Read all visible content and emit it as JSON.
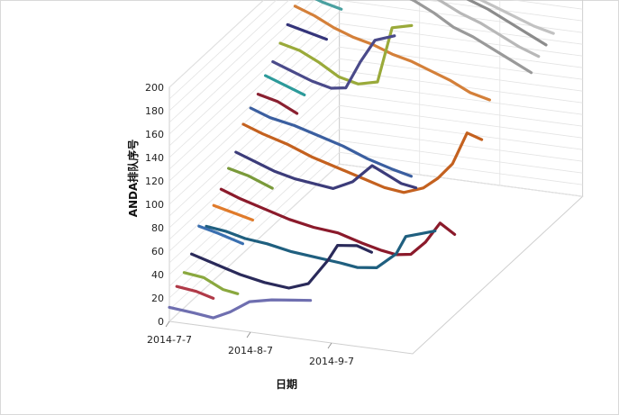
{
  "chart_data": {
    "type": "line",
    "title": "",
    "xlabel": "日期",
    "ylabel": "ANDA排队序号",
    "ylim": [
      0,
      200
    ],
    "yticks": [
      0,
      20,
      40,
      60,
      80,
      100,
      120,
      140,
      160,
      180,
      200
    ],
    "xticks": [
      "2014-7-7",
      "2014-8-7",
      "2014-9-7"
    ],
    "xlim_days": [
      0,
      100
    ],
    "grid": true,
    "legend": "none",
    "series": [
      {
        "color": "#6f6fb0",
        "depth": 0,
        "points": [
          [
            0,
            12
          ],
          [
            10,
            10
          ],
          [
            18,
            8
          ],
          [
            25,
            15
          ],
          [
            33,
            26
          ],
          [
            42,
            30
          ],
          [
            50,
            32
          ],
          [
            58,
            34
          ]
        ]
      },
      {
        "color": "#b03a48",
        "depth": 1,
        "points": [
          [
            0,
            24
          ],
          [
            8,
            22
          ],
          [
            15,
            18
          ]
        ]
      },
      {
        "color": "#8aa83e",
        "depth": 2,
        "points": [
          [
            0,
            30
          ],
          [
            8,
            28
          ],
          [
            16,
            20
          ],
          [
            22,
            18
          ]
        ]
      },
      {
        "color": "#2a2a5a",
        "depth": 3,
        "points": [
          [
            0,
            40
          ],
          [
            10,
            34
          ],
          [
            20,
            28
          ],
          [
            30,
            24
          ],
          [
            40,
            22
          ],
          [
            48,
            28
          ],
          [
            56,
            50
          ],
          [
            60,
            64
          ],
          [
            68,
            66
          ],
          [
            74,
            62
          ]
        ]
      },
      {
        "color": "#3a6fb0",
        "depth": 4,
        "points": [
          [
            0,
            58
          ],
          [
            8,
            54
          ],
          [
            18,
            48
          ]
        ]
      },
      {
        "color": "#1f5f7f",
        "depth": 5,
        "points": [
          [
            0,
            52
          ],
          [
            8,
            50
          ],
          [
            16,
            46
          ],
          [
            25,
            44
          ],
          [
            35,
            40
          ],
          [
            45,
            38
          ],
          [
            55,
            36
          ],
          [
            62,
            34
          ],
          [
            70,
            36
          ],
          [
            78,
            50
          ],
          [
            82,
            66
          ],
          [
            88,
            70
          ],
          [
            94,
            74
          ]
        ]
      },
      {
        "color": "#e07b2b",
        "depth": 6,
        "points": [
          [
            0,
            64
          ],
          [
            8,
            60
          ],
          [
            16,
            56
          ]
        ]
      },
      {
        "color": "#8b1a2b",
        "depth": 7,
        "points": [
          [
            0,
            72
          ],
          [
            8,
            66
          ],
          [
            18,
            60
          ],
          [
            28,
            54
          ],
          [
            38,
            50
          ],
          [
            48,
            48
          ],
          [
            58,
            42
          ],
          [
            66,
            38
          ],
          [
            72,
            36
          ],
          [
            78,
            38
          ],
          [
            84,
            50
          ],
          [
            90,
            68
          ],
          [
            96,
            60
          ]
        ]
      },
      {
        "color": "#7a9a3a",
        "depth": 8,
        "points": [
          [
            0,
            84
          ],
          [
            8,
            80
          ],
          [
            18,
            72
          ]
        ]
      },
      {
        "color": "#3c3c7a",
        "depth": 9,
        "points": [
          [
            0,
            92
          ],
          [
            8,
            86
          ],
          [
            16,
            80
          ],
          [
            24,
            76
          ],
          [
            32,
            74
          ],
          [
            40,
            72
          ],
          [
            48,
            80
          ],
          [
            56,
            96
          ],
          [
            62,
            90
          ],
          [
            68,
            84
          ],
          [
            74,
            82
          ]
        ]
      },
      {
        "color": "#c4611f",
        "depth": 10,
        "points": [
          [
            0,
            110
          ],
          [
            8,
            104
          ],
          [
            18,
            98
          ],
          [
            28,
            90
          ],
          [
            38,
            84
          ],
          [
            48,
            78
          ],
          [
            58,
            72
          ],
          [
            66,
            70
          ],
          [
            74,
            76
          ],
          [
            80,
            86
          ],
          [
            86,
            100
          ],
          [
            92,
            128
          ],
          [
            98,
            124
          ]
        ]
      },
      {
        "color": "#3b5fa0",
        "depth": 11,
        "points": [
          [
            0,
            118
          ],
          [
            8,
            112
          ],
          [
            18,
            108
          ],
          [
            28,
            102
          ],
          [
            38,
            96
          ],
          [
            48,
            88
          ],
          [
            58,
            82
          ],
          [
            66,
            78
          ]
        ]
      },
      {
        "color": "#8a2030",
        "depth": 12,
        "points": [
          [
            0,
            124
          ],
          [
            8,
            120
          ],
          [
            16,
            112
          ]
        ]
      },
      {
        "color": "#2c9a9a",
        "depth": 13,
        "points": [
          [
            0,
            134
          ],
          [
            8,
            128
          ],
          [
            16,
            122
          ]
        ]
      },
      {
        "color": "#4a4a8a",
        "depth": 14,
        "points": [
          [
            0,
            140
          ],
          [
            8,
            134
          ],
          [
            16,
            128
          ],
          [
            24,
            124
          ],
          [
            30,
            126
          ],
          [
            36,
            150
          ],
          [
            42,
            170
          ],
          [
            50,
            176
          ]
        ]
      },
      {
        "color": "#9aaa3a",
        "depth": 15,
        "points": [
          [
            0,
            150
          ],
          [
            8,
            146
          ],
          [
            16,
            138
          ],
          [
            24,
            128
          ],
          [
            32,
            124
          ],
          [
            40,
            128
          ],
          [
            46,
            176
          ],
          [
            54,
            180
          ]
        ]
      },
      {
        "color": "#34347a",
        "depth": 16,
        "points": [
          [
            0,
            160
          ],
          [
            8,
            156
          ],
          [
            16,
            152
          ]
        ]
      },
      {
        "color": "#d4803a",
        "depth": 17,
        "points": [
          [
            0,
            170
          ],
          [
            8,
            164
          ],
          [
            16,
            156
          ],
          [
            24,
            150
          ],
          [
            32,
            146
          ],
          [
            40,
            140
          ],
          [
            48,
            136
          ],
          [
            56,
            130
          ],
          [
            64,
            124
          ],
          [
            72,
            116
          ],
          [
            80,
            112
          ]
        ]
      },
      {
        "color": "#4aa0a0",
        "depth": 18,
        "points": [
          [
            0,
            176
          ],
          [
            8,
            170
          ],
          [
            16,
            166
          ]
        ]
      },
      {
        "color": "#8aa040",
        "depth": 19,
        "points": [
          [
            0,
            184
          ],
          [
            8,
            178
          ],
          [
            16,
            172
          ],
          [
            24,
            174
          ],
          [
            30,
            182
          ]
        ]
      },
      {
        "color": "#9a9a9a",
        "depth": 20,
        "points": [
          [
            0,
            196
          ],
          [
            8,
            190
          ],
          [
            16,
            186
          ],
          [
            24,
            180
          ],
          [
            32,
            174
          ],
          [
            40,
            168
          ],
          [
            48,
            160
          ],
          [
            56,
            150
          ],
          [
            64,
            144
          ],
          [
            72,
            136
          ],
          [
            80,
            128
          ],
          [
            88,
            120
          ]
        ]
      },
      {
        "color": "#b8b8b8",
        "depth": 21,
        "points": [
          [
            0,
            198
          ],
          [
            8,
            194
          ],
          [
            16,
            190
          ],
          [
            24,
            184
          ],
          [
            32,
            178
          ],
          [
            40,
            172
          ],
          [
            48,
            164
          ],
          [
            56,
            156
          ],
          [
            64,
            150
          ],
          [
            72,
            142
          ],
          [
            80,
            134
          ],
          [
            88,
            128
          ]
        ]
      },
      {
        "color": "#8c8c8c",
        "depth": 22,
        "points": [
          [
            0,
            200
          ],
          [
            8,
            196
          ],
          [
            16,
            192
          ],
          [
            24,
            186
          ],
          [
            32,
            180
          ],
          [
            40,
            176
          ],
          [
            48,
            170
          ],
          [
            56,
            162
          ],
          [
            64,
            156
          ],
          [
            72,
            148
          ],
          [
            80,
            140
          ],
          [
            88,
            132
          ]
        ]
      },
      {
        "color": "#c2c2c2",
        "depth": 23,
        "points": [
          [
            0,
            198
          ],
          [
            8,
            192
          ],
          [
            16,
            186
          ],
          [
            24,
            180
          ],
          [
            32,
            176
          ],
          [
            40,
            170
          ],
          [
            48,
            164
          ],
          [
            56,
            158
          ],
          [
            64,
            152
          ],
          [
            72,
            146
          ],
          [
            80,
            140
          ],
          [
            88,
            136
          ]
        ]
      }
    ]
  }
}
